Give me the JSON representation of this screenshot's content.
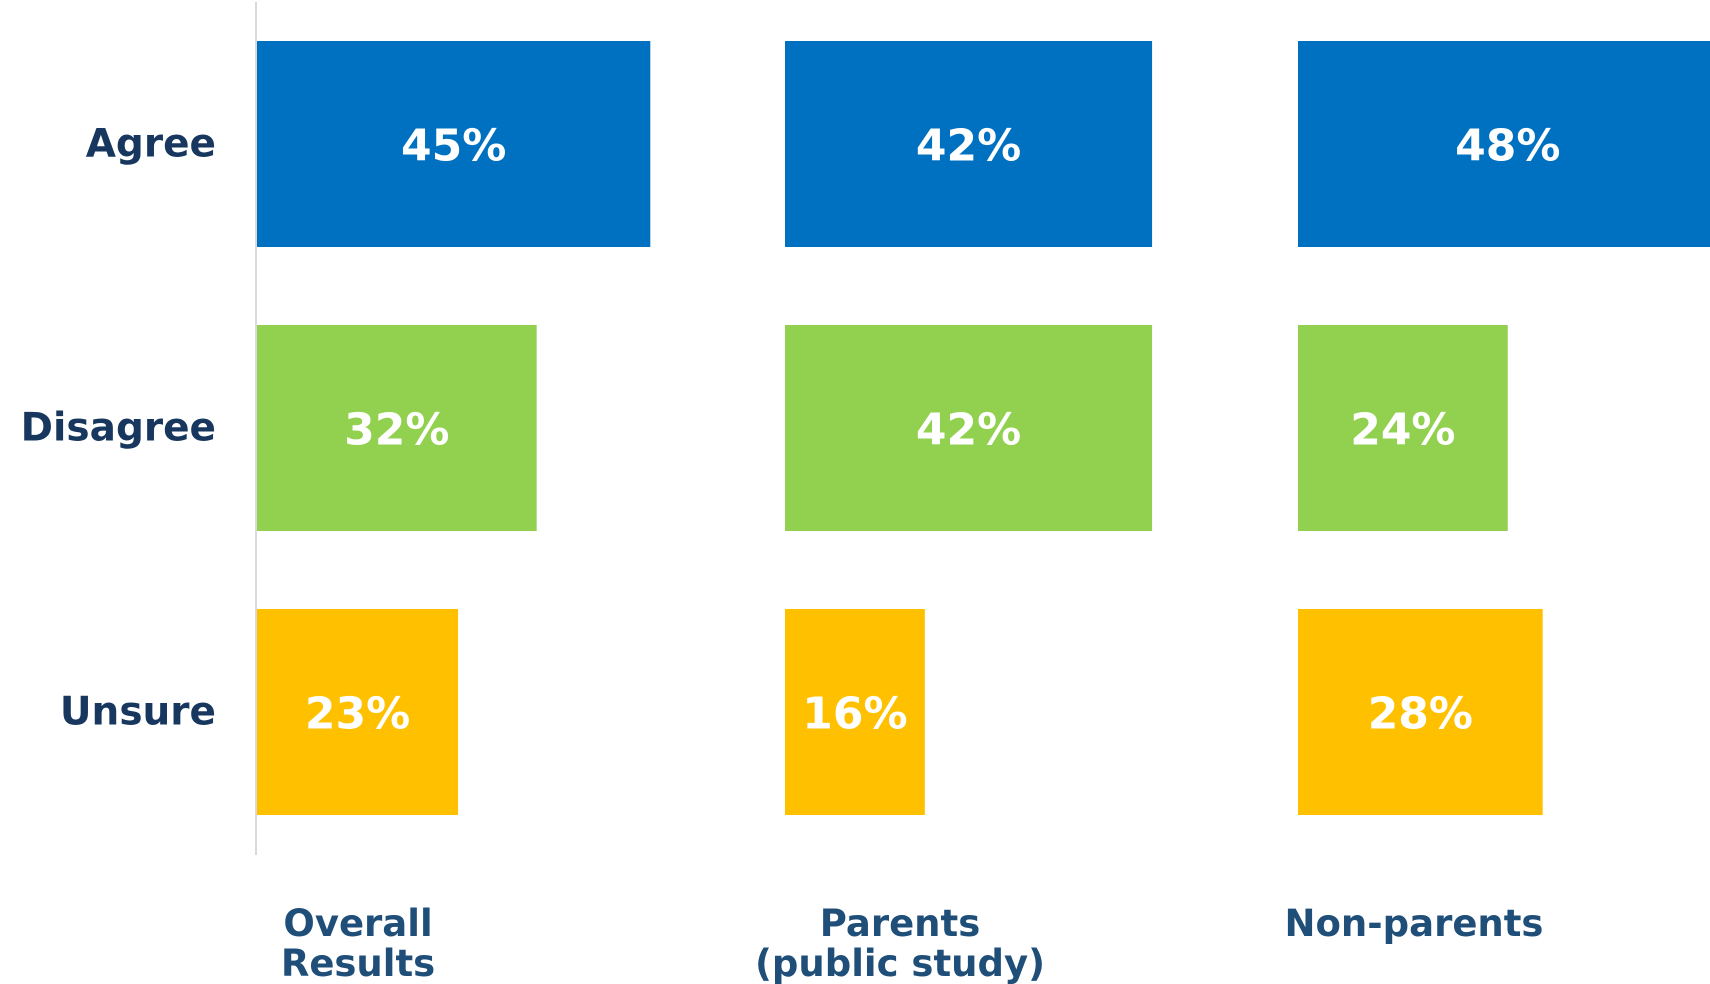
{
  "chart_data": {
    "type": "bar",
    "orientation": "horizontal",
    "layout": "small-multiples",
    "categories": [
      "Agree",
      "Disagree",
      "Unsure"
    ],
    "groups": [
      {
        "name": "Overall\nResults",
        "values": [
          45,
          32,
          23
        ]
      },
      {
        "name": "Parents\n(public study)",
        "values": [
          42,
          42,
          16
        ]
      },
      {
        "name": "Non-parents",
        "values": [
          48,
          24,
          28
        ]
      }
    ],
    "value_labels": [
      [
        "45%",
        "32%",
        "23%"
      ],
      [
        "42%",
        "42%",
        "16%"
      ],
      [
        "48%",
        "24%",
        "28%"
      ]
    ],
    "category_colors": [
      "#0070c0",
      "#92d050",
      "#ffc000"
    ],
    "xlim": [
      0,
      50
    ],
    "grid": false,
    "legend": "none"
  }
}
